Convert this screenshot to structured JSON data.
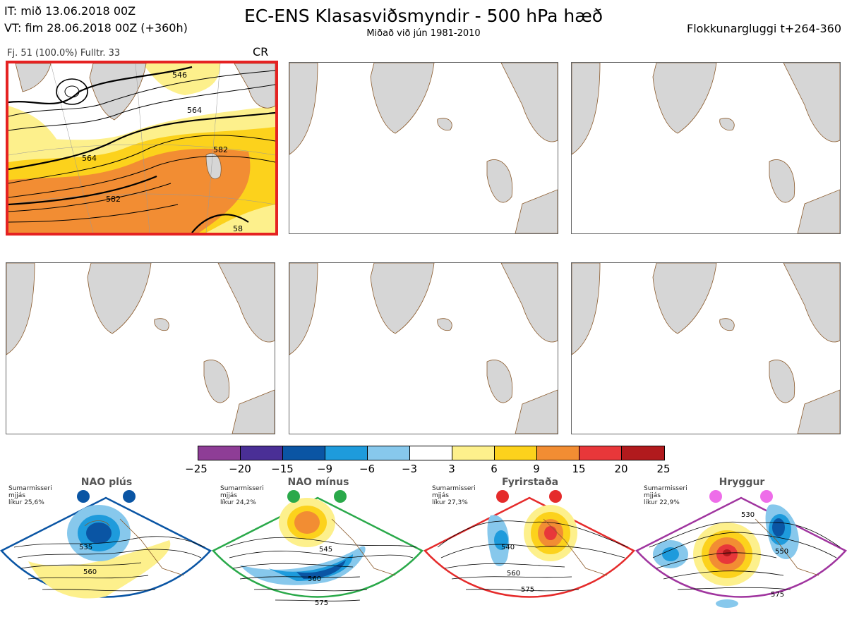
{
  "header": {
    "it_line": "IT: mið 13.06.2018 00Z",
    "vt_line": "VT: fim 28.06.2018 00Z  (+360h)",
    "title": "EC-ENS Klasasviðsmyndir - 500 hPa hæð",
    "subtitle": "Miðað við jún 1981-2010",
    "window": "Flokkunargluggi t+264-360"
  },
  "cluster": {
    "info": "Fj. 51 (100.0%)   Fulltr. 33",
    "regime_code": "CR",
    "contour_labels": [
      "546",
      "564",
      "564",
      "582",
      "582",
      "58"
    ]
  },
  "colorbar": {
    "colors": [
      "#8e3d96",
      "#4a2f96",
      "#0a55a4",
      "#1e9bdc",
      "#87c8ec",
      "#ffffff",
      "#fdf08c",
      "#fcd21c",
      "#f28d33",
      "#e8373a",
      "#b11a1d"
    ],
    "ticks": [
      "−25",
      "−20",
      "−15",
      "−9",
      "−6",
      "−3",
      "3",
      "6",
      "9",
      "15",
      "20",
      "25"
    ]
  },
  "regimes": [
    {
      "name": "NAO plús",
      "season": "Sumarmisseri",
      "mean": "mjjás",
      "prob": "líkur 25,6%",
      "color": "#0a55a4",
      "labels": [
        "535",
        "560"
      ]
    },
    {
      "name": "NAO mínus",
      "season": "Sumarmisseri",
      "mean": "mjjás",
      "prob": "líkur 24,2%",
      "color": "#2aa94a",
      "labels": [
        "545",
        "560",
        "575"
      ]
    },
    {
      "name": "Fyrirstaða",
      "season": "Sumarmisseri",
      "mean": "mjjás",
      "prob": "líkur 27,3%",
      "color": "#e52b2b",
      "labels": [
        "540",
        "560",
        "575"
      ]
    },
    {
      "name": "Hryggur",
      "season": "Sumarmisseri",
      "mean": "mjjás",
      "prob": "líkur 22,9%",
      "color": "#ee6de9",
      "labels": [
        "530",
        "550",
        "575"
      ]
    }
  ]
}
